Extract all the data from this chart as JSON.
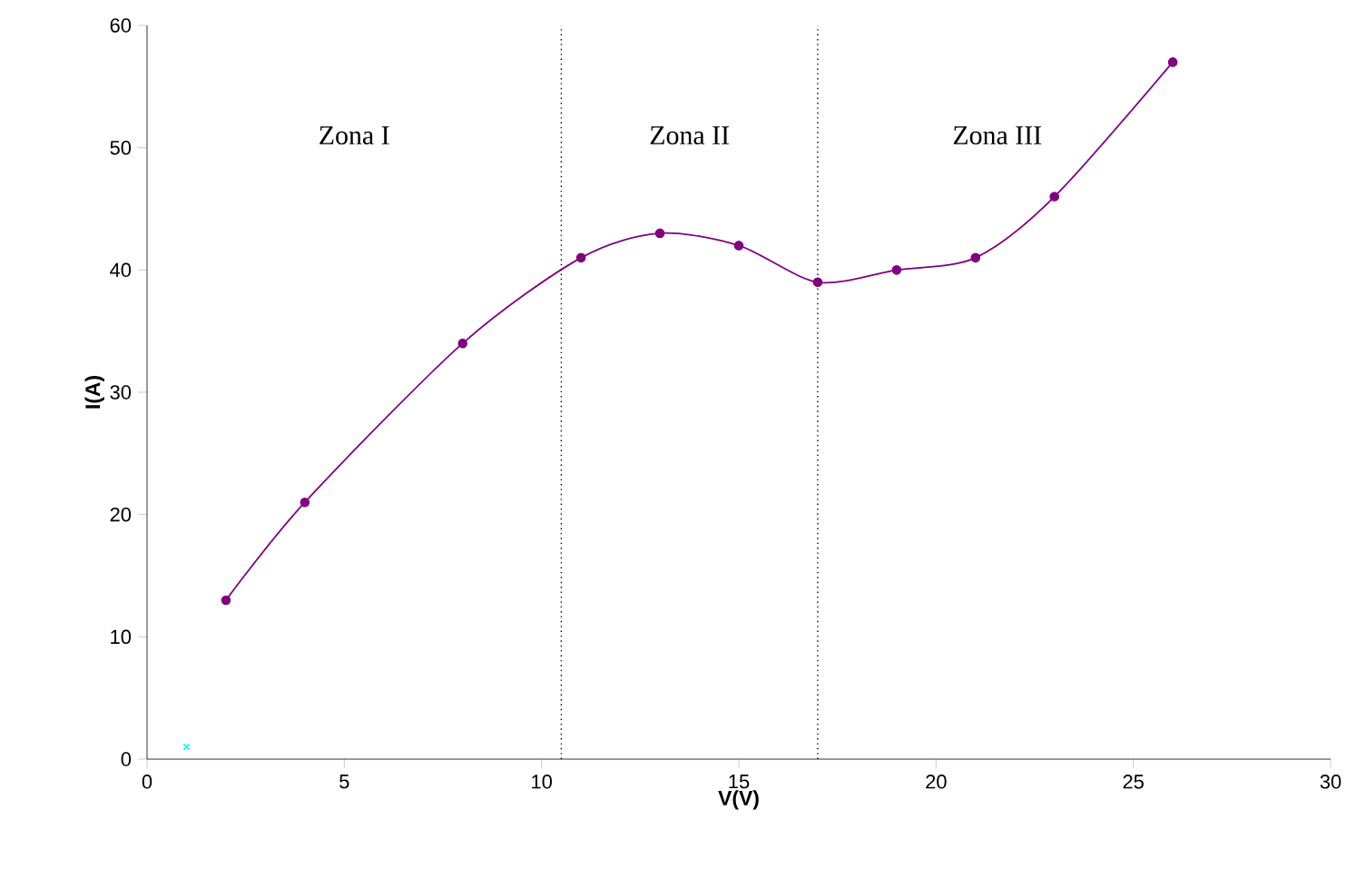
{
  "chart_data": {
    "type": "line",
    "xlabel": "V(V)",
    "ylabel": "I(A)",
    "xlim": [
      0,
      30
    ],
    "ylim": [
      0,
      60
    ],
    "xticks": [
      0,
      5,
      10,
      15,
      20,
      25,
      30
    ],
    "yticks": [
      0,
      10,
      20,
      30,
      40,
      50,
      60
    ],
    "grid": false,
    "series": [
      {
        "color": "#800080",
        "marker": "circle",
        "x": [
          2,
          4,
          8,
          11,
          13,
          15,
          17,
          19,
          21,
          23,
          26
        ],
        "values": [
          13,
          21,
          34,
          41,
          43,
          42,
          39,
          40,
          41,
          46,
          57
        ]
      },
      {
        "type": "scatter",
        "color": "#00ffff",
        "marker": "cross",
        "x": [
          1
        ],
        "values": [
          1
        ]
      }
    ],
    "ref_lines": [
      {
        "axis": "x",
        "value": 10.5,
        "color": "#000000",
        "line_style": "dotted"
      },
      {
        "axis": "x",
        "value": 17,
        "color": "#000000",
        "line_style": "dotted"
      }
    ],
    "annotations": [
      "Zona I",
      "Zona II",
      "Zona III"
    ]
  }
}
